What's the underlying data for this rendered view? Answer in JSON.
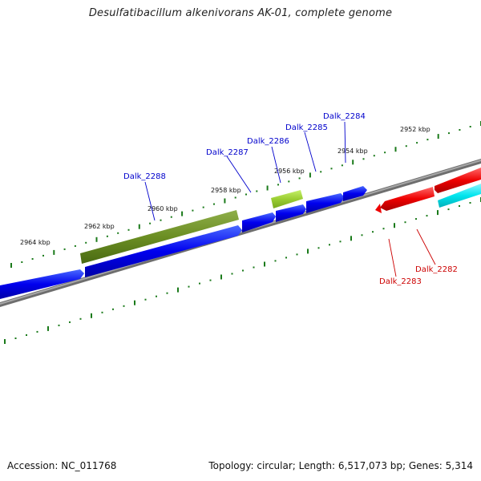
{
  "title": "Desulfatibacillum alkenivorans AK-01, complete genome",
  "footer": {
    "accession": "Accession: NC_011768",
    "topology": "Topology: circular; Length: 6,517,073 bp; Genes: 5,314"
  },
  "tick_labels": [
    "2952 kbp",
    "2954 kbp",
    "2956 kbp",
    "2958 kbp",
    "2960 kbp",
    "2962 kbp",
    "2964 kbp"
  ],
  "gene_labels": [
    "Dalk_2284",
    "Dalk_2285",
    "Dalk_2286",
    "Dalk_2287",
    "Dalk_2288",
    "Dalk_2282",
    "Dalk_2283"
  ],
  "colors": {
    "forward_gene": "#0000ee",
    "reverse_gene": "#ee0000",
    "cds_olive": "#6b8e23",
    "cds_lime": "#9acd32",
    "cds_cyan": "#00e5ee",
    "backbone": "#888888",
    "ticks": "#1a7a1a",
    "forward_label": "#0000cc",
    "reverse_label": "#cc0000"
  }
}
